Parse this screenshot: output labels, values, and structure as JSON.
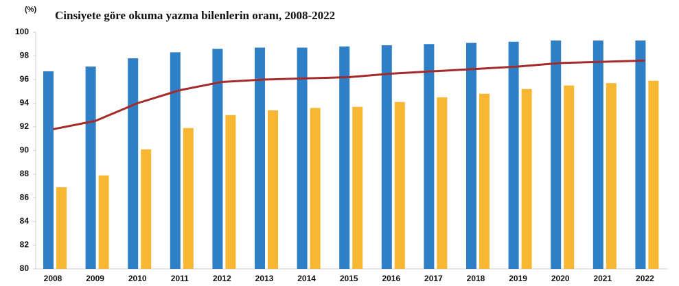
{
  "chart_data": {
    "type": "bar",
    "title": "Cinsiyete göre okuma yazma bilenlerin oranı, 2008-2022",
    "y_label": "(%)",
    "categories": [
      "2008",
      "2009",
      "2010",
      "2011",
      "2012",
      "2013",
      "2014",
      "2015",
      "2016",
      "2017",
      "2018",
      "2019",
      "2020",
      "2021",
      "2022"
    ],
    "series": [
      {
        "type": "bar",
        "color": "#2f7fc6",
        "values": [
          96.7,
          97.1,
          97.8,
          98.3,
          98.6,
          98.7,
          98.7,
          98.8,
          98.9,
          99.0,
          99.1,
          99.2,
          99.3,
          99.3,
          99.3
        ]
      },
      {
        "type": "bar",
        "color": "#f7b733",
        "values": [
          86.9,
          87.9,
          90.1,
          91.9,
          93.0,
          93.4,
          93.6,
          93.7,
          94.1,
          94.5,
          94.8,
          95.2,
          95.5,
          95.7,
          95.9
        ]
      },
      {
        "type": "line",
        "color": "#a52a2a",
        "values": [
          91.8,
          92.5,
          94.0,
          95.1,
          95.8,
          96.0,
          96.1,
          96.2,
          96.5,
          96.7,
          96.9,
          97.1,
          97.4,
          97.5,
          97.6
        ]
      }
    ],
    "ylim": [
      80,
      100
    ],
    "yticks": [
      80,
      82,
      84,
      86,
      88,
      90,
      92,
      94,
      96,
      98,
      100
    ]
  }
}
